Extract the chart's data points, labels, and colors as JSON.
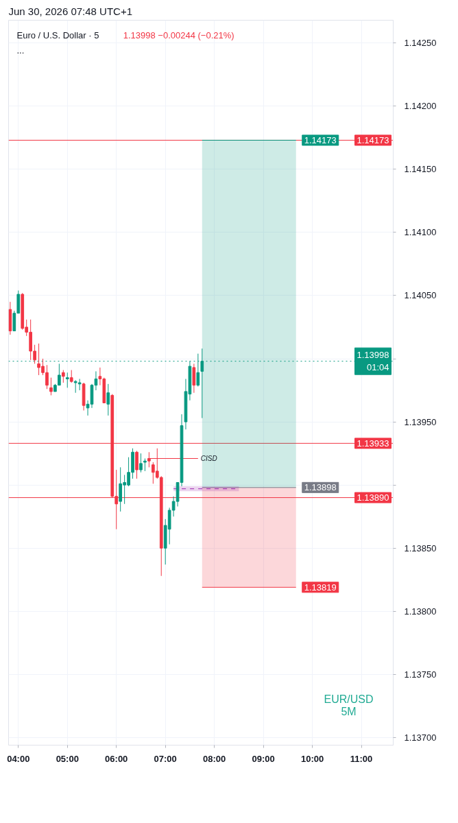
{
  "chart_data": {
    "type": "candlestick",
    "title": "Jun 30, 2026 07:48 UTC+1",
    "subtitle": "Euro / U.S. Dollar · 5",
    "annotations": [
      "1.13998  −0.00244 (−0.21%)",
      "...",
      "EUR/USD",
      "5M",
      {
        "text": "CISD",
        "x": "2026-06-30T07:40",
        "y": 1.13921
      }
    ],
    "x": [
      "2026-06-30T03:50",
      "2026-06-30T03:55",
      "2026-06-30T04:00",
      "2026-06-30T04:05",
      "2026-06-30T04:10",
      "2026-06-30T04:15",
      "2026-06-30T04:20",
      "2026-06-30T04:25",
      "2026-06-30T04:30",
      "2026-06-30T04:35",
      "2026-06-30T04:40",
      "2026-06-30T04:45",
      "2026-06-30T04:50",
      "2026-06-30T04:55",
      "2026-06-30T05:00",
      "2026-06-30T05:05",
      "2026-06-30T05:10",
      "2026-06-30T05:15",
      "2026-06-30T05:20",
      "2026-06-30T05:25",
      "2026-06-30T05:30",
      "2026-06-30T05:35",
      "2026-06-30T05:40",
      "2026-06-30T05:45",
      "2026-06-30T05:50",
      "2026-06-30T05:55",
      "2026-06-30T06:00",
      "2026-06-30T06:05",
      "2026-06-30T06:10",
      "2026-06-30T06:15",
      "2026-06-30T06:20",
      "2026-06-30T06:25",
      "2026-06-30T06:30",
      "2026-06-30T06:35",
      "2026-06-30T06:40",
      "2026-06-30T06:45",
      "2026-06-30T06:50",
      "2026-06-30T06:55",
      "2026-06-30T07:00",
      "2026-06-30T07:05",
      "2026-06-30T07:10",
      "2026-06-30T07:15",
      "2026-06-30T07:20",
      "2026-06-30T07:25",
      "2026-06-30T07:30",
      "2026-06-30T07:35",
      "2026-06-30T07:40",
      "2026-06-30T07:45"
    ],
    "ohlc": [
      [
        1.14039,
        1.14045,
        1.14019,
        1.14022
      ],
      [
        1.14022,
        1.14038,
        1.14022,
        1.14036
      ],
      [
        1.14036,
        1.14054,
        1.14036,
        1.14051
      ],
      [
        1.14051,
        1.14052,
        1.14023,
        1.14024
      ],
      [
        1.14025,
        1.14031,
        1.14018,
        1.14021
      ],
      [
        1.14021,
        1.14031,
        1.13999,
        1.14006
      ],
      [
        1.14006,
        1.14011,
        1.13996,
        1.13999
      ],
      [
        1.13996,
        1.14012,
        1.13987,
        1.13993
      ],
      [
        1.13994,
        1.14,
        1.13987,
        1.13989
      ],
      [
        1.13989,
        1.13995,
        1.13976,
        1.13979
      ],
      [
        1.13977,
        1.13985,
        1.13971,
        1.13974
      ],
      [
        1.13974,
        1.1398,
        1.13974,
        1.13979
      ],
      [
        1.13979,
        1.13996,
        1.13979,
        1.13987
      ],
      [
        1.13989,
        1.13991,
        1.13981,
        1.13986
      ],
      [
        1.13984,
        1.13989,
        1.13977,
        1.13985
      ],
      [
        1.13985,
        1.13991,
        1.13981,
        1.13982
      ],
      [
        1.13981,
        1.13983,
        1.13973,
        1.13982
      ],
      [
        1.1398,
        1.13984,
        1.13975,
        1.13981
      ],
      [
        1.1398,
        1.13981,
        1.13959,
        1.13963
      ],
      [
        1.13961,
        1.13967,
        1.13955,
        1.13964
      ],
      [
        1.13964,
        1.1398,
        1.13961,
        1.13979
      ],
      [
        1.13979,
        1.1399,
        1.13975,
        1.13984
      ],
      [
        1.13986,
        1.13993,
        1.13979,
        1.13984
      ],
      [
        1.13984,
        1.13985,
        1.13965,
        1.13965
      ],
      [
        1.13964,
        1.1398,
        1.13955,
        1.13973
      ],
      [
        1.13971,
        1.13972,
        1.1389,
        1.13891
      ],
      [
        1.13891,
        1.13912,
        1.13865,
        1.13885
      ],
      [
        1.13887,
        1.13914,
        1.13879,
        1.13901
      ],
      [
        1.139,
        1.13908,
        1.13885,
        1.13902
      ],
      [
        1.139,
        1.13922,
        1.13899,
        1.1391
      ],
      [
        1.1391,
        1.13929,
        1.13905,
        1.13926
      ],
      [
        1.13926,
        1.13927,
        1.13905,
        1.13912
      ],
      [
        1.13912,
        1.13925,
        1.1391,
        1.13917
      ],
      [
        1.13918,
        1.13921,
        1.13911,
        1.13919
      ],
      [
        1.13921,
        1.13926,
        1.13914,
        1.13919
      ],
      [
        1.13916,
        1.13918,
        1.13901,
        1.1391
      ],
      [
        1.13911,
        1.13929,
        1.13905,
        1.13906
      ],
      [
        1.13906,
        1.13907,
        1.13828,
        1.1385
      ],
      [
        1.1385,
        1.13873,
        1.13837,
        1.13868
      ],
      [
        1.13865,
        1.13882,
        1.13853,
        1.1388
      ],
      [
        1.1388,
        1.13891,
        1.13875,
        1.13887
      ],
      [
        1.13887,
        1.13902,
        1.13883,
        1.13902
      ],
      [
        1.13902,
        1.13956,
        1.13899,
        1.13947
      ],
      [
        1.1395,
        1.13984,
        1.13944,
        1.13974
      ],
      [
        1.13972,
        1.13998,
        1.13967,
        1.13994
      ],
      [
        1.13993,
        1.13996,
        1.13973,
        1.13979
      ],
      [
        1.13979,
        1.14004,
        1.13978,
        1.13989
      ],
      [
        1.1399,
        1.14008,
        1.13953,
        1.13998
      ]
    ],
    "colors": [
      "#f23645",
      "#089981",
      "#089981",
      "#f23645",
      "#f23645",
      "#f23645",
      "#f23645",
      "#f23645",
      "#f23645",
      "#f23645",
      "#f23645",
      "#089981",
      "#089981",
      "#f23645",
      "#089981",
      "#f23645",
      "#089981",
      "#089981",
      "#f23645",
      "#089981",
      "#089981",
      "#089981",
      "#f23645",
      "#f23645",
      "#089981",
      "#f23645",
      "#f23645",
      "#089981",
      "#089981",
      "#089981",
      "#089981",
      "#f23645",
      "#089981",
      "#089981",
      "#f23645",
      "#f23645",
      "#f23645",
      "#f23645",
      "#089981",
      "#089981",
      "#089981",
      "#089981",
      "#089981",
      "#089981",
      "#089981",
      "#f23645",
      "#089981",
      "#089981"
    ],
    "series": [
      {
        "type": "line",
        "x": [
          "2026-06-30T07:45",
          "2026-06-30T09:40"
        ],
        "values": [
          1.14173,
          1.14173
        ],
        "lower": [
          1.13898,
          1.13898
        ],
        "upper": [
          1.14173,
          1.14173
        ],
        "color": "#089981",
        "value_labels": [
          null,
          "1.14173"
        ]
      },
      {
        "type": "line",
        "x": [
          "2026-06-30T07:45",
          "2026-06-30T09:40"
        ],
        "values": [
          1.13819,
          1.13819
        ],
        "lower": [
          1.13819,
          1.13819
        ],
        "upper": [
          1.13898,
          1.13898
        ],
        "color": "#f23645",
        "value_labels": [
          null,
          "1.13819"
        ]
      },
      {
        "type": "line",
        "x": [
          "2026-06-30T07:45",
          "2026-06-30T09:40"
        ],
        "values": [
          1.13898,
          1.13898
        ],
        "color": "#787b86",
        "value_labels": [
          null,
          "1.13898"
        ]
      },
      {
        "type": "line",
        "x": [
          "2026-06-30T06:40",
          "2026-06-30T07:40"
        ],
        "values": [
          1.13921,
          1.13921
        ],
        "color": "#f23645"
      },
      {
        "type": "line",
        "x": [
          "2026-06-30T07:10",
          "2026-06-30T08:30"
        ],
        "values": [
          1.13897,
          1.13897
        ],
        "lower": [
          1.13895,
          1.13895
        ],
        "upper": [
          1.13899,
          1.13899
        ],
        "color": "#9c27b0",
        "line_style": "dashed"
      }
    ],
    "ref_lines": [
      {
        "axis": "y",
        "value": 1.14173,
        "label": "1.14173",
        "color": "#f23645"
      },
      {
        "axis": "y",
        "value": 1.13998,
        "label": "1.13998\n01:04",
        "color": "#089981",
        "line_style": "dotted"
      },
      {
        "axis": "y",
        "value": 1.13933,
        "label": "1.13933",
        "color": "#f23645"
      },
      {
        "axis": "y",
        "value": 1.1389,
        "label": "1.13890",
        "color": "#f23645"
      }
    ],
    "xlim": [
      "2026-06-30T03:48",
      "2026-06-30T11:39"
    ],
    "xticks": [
      {
        "value": "2026-06-30T04:00",
        "label": "04:00"
      },
      {
        "value": "2026-06-30T05:00",
        "label": "05:00"
      },
      {
        "value": "2026-06-30T06:00",
        "label": "06:00"
      },
      {
        "value": "2026-06-30T07:00",
        "label": "07:00"
      },
      {
        "value": "2026-06-30T08:00",
        "label": "08:00"
      },
      {
        "value": "2026-06-30T09:00",
        "label": "09:00"
      },
      {
        "value": "2026-06-30T10:00",
        "label": "10:00"
      },
      {
        "value": "2026-06-30T11:00",
        "label": "11:00"
      }
    ],
    "ylim": [
      1.13694,
      1.14268
    ],
    "yticks": [
      {
        "value": 1.137,
        "label": "1.13700"
      },
      {
        "value": 1.1375,
        "label": "1.13750"
      },
      {
        "value": 1.138,
        "label": "1.13800"
      },
      {
        "value": 1.1385,
        "label": "1.13850"
      },
      {
        "value": 1.139,
        "label": null
      },
      {
        "value": 1.1395,
        "label": "1.13950"
      },
      {
        "value": 1.14,
        "label": null
      },
      {
        "value": 1.1405,
        "label": "1.14050"
      },
      {
        "value": 1.141,
        "label": "1.14100"
      },
      {
        "value": 1.1415,
        "label": "1.14150"
      },
      {
        "value": 1.142,
        "label": "1.14200"
      },
      {
        "value": 1.1425,
        "label": "1.14250"
      }
    ],
    "grid": true
  }
}
